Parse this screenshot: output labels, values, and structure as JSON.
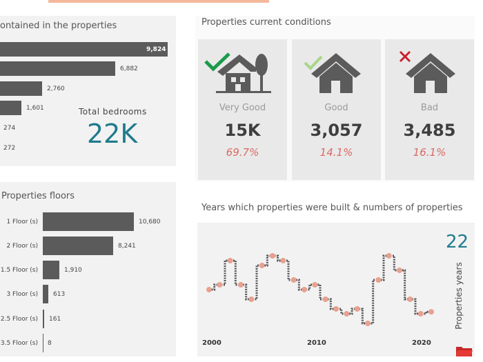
{
  "colors": {
    "bar": "#5b5b5b",
    "accent": "#1e7b8c",
    "pct": "#d96a63",
    "dot": "#e8a090",
    "check_very_good": "#1a9a4a",
    "check_good": "#a8d68a",
    "cross": "#cc1f2d"
  },
  "bedrooms": {
    "title": "ontained in the properties",
    "total_label": "Total bedrooms",
    "total_value": "22K",
    "values": [
      "9,824",
      "6,882",
      "2,760",
      "1,601",
      "274",
      "272"
    ]
  },
  "conditions": {
    "title": "Properties current conditions",
    "cards": [
      {
        "label": "Very Good",
        "value": "15K",
        "pct": "69.7%",
        "mark": "check-icon"
      },
      {
        "label": "Good",
        "value": "3,057",
        "pct": "14.1%",
        "mark": "check-icon"
      },
      {
        "label": "Bad",
        "value": "3,485",
        "pct": "16.1%",
        "mark": "cross-icon"
      }
    ]
  },
  "floors": {
    "title": "Properties floors",
    "categories": [
      "1 Floor (s)",
      "2 Floor (s)",
      "1.5 Floor (s)",
      "3 Floor (s)",
      "2.5 Floor (s)",
      "3.5 Floor (s)"
    ],
    "values": [
      "10,680",
      "8,241",
      "1,910",
      "613",
      "161",
      "8"
    ]
  },
  "years_chart": {
    "title": "Years which properties were built & numbers of properties",
    "kpi_value": "22",
    "kpi_label": "Properties years",
    "x_labels": [
      "2000",
      "2010",
      "2020"
    ]
  },
  "chart_data": [
    {
      "type": "bar",
      "title": "ontained in the properties",
      "orientation": "horizontal",
      "values": [
        9824,
        6882,
        2760,
        1601,
        274,
        272
      ]
    },
    {
      "type": "bar",
      "title": "Properties floors",
      "orientation": "horizontal",
      "categories": [
        "1 Floor (s)",
        "2 Floor (s)",
        "1.5 Floor (s)",
        "3 Floor (s)",
        "2.5 Floor (s)",
        "3.5 Floor (s)"
      ],
      "values": [
        10680,
        8241,
        1910,
        613,
        161,
        8
      ]
    },
    {
      "type": "line",
      "title": "Years which properties were built & numbers of properties",
      "x": [
        2000,
        2001,
        2002,
        2003,
        2004,
        2005,
        2006,
        2007,
        2008,
        2009,
        2010,
        2011,
        2012,
        2013,
        2014,
        2015,
        2016,
        2017,
        2018,
        2019,
        2020,
        2021
      ],
      "values": [
        50,
        55,
        80,
        55,
        40,
        75,
        85,
        80,
        60,
        50,
        55,
        40,
        30,
        25,
        30,
        15,
        60,
        85,
        70,
        40,
        25,
        27
      ],
      "xlim": [
        2000,
        2021
      ],
      "ylim": [
        0,
        100
      ],
      "x_ticks": [
        "2000",
        "2010",
        "2020"
      ]
    }
  ]
}
